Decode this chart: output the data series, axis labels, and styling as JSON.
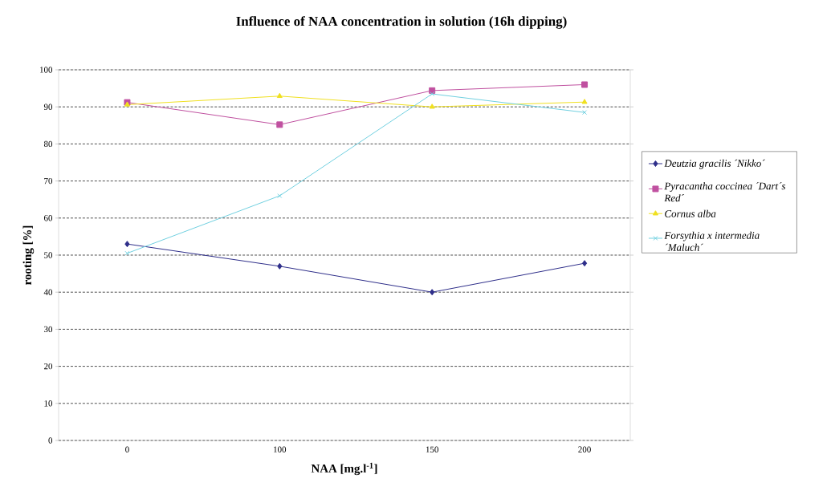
{
  "chart_data": {
    "type": "line",
    "title": "Influence of NAA concentration in solution (16h dipping)",
    "xlabel": "NAA [mg.l$^{-1}$]",
    "ylabel": "rooting [%]",
    "categories": [
      "0",
      "100",
      "150",
      "200"
    ],
    "series": [
      {
        "name": "Deutzia gracilis ´Nikko´",
        "color": "#2e2e8a",
        "marker": "diamond",
        "values": [
          53,
          47,
          40,
          47.8
        ]
      },
      {
        "name": "Pyracantha coccinea ´Dart´s Red´",
        "color": "#c050a0",
        "marker": "square",
        "values": [
          91.2,
          85.2,
          94.4,
          96
        ]
      },
      {
        "name": "Cornus alba",
        "color": "#f0e020",
        "marker": "triangle",
        "values": [
          90.6,
          92.9,
          90,
          91.3
        ]
      },
      {
        "name": "Forsythia x intermedia ´Maluch´",
        "color": "#70d0e0",
        "marker": "cross",
        "values": [
          50.5,
          66,
          93.5,
          88.5
        ]
      }
    ],
    "ylim": [
      0,
      100
    ],
    "yticks": [
      0,
      10,
      20,
      30,
      40,
      50,
      60,
      70,
      80,
      90,
      100
    ],
    "grid": "y",
    "legend": "right",
    "line_style": "solid"
  }
}
